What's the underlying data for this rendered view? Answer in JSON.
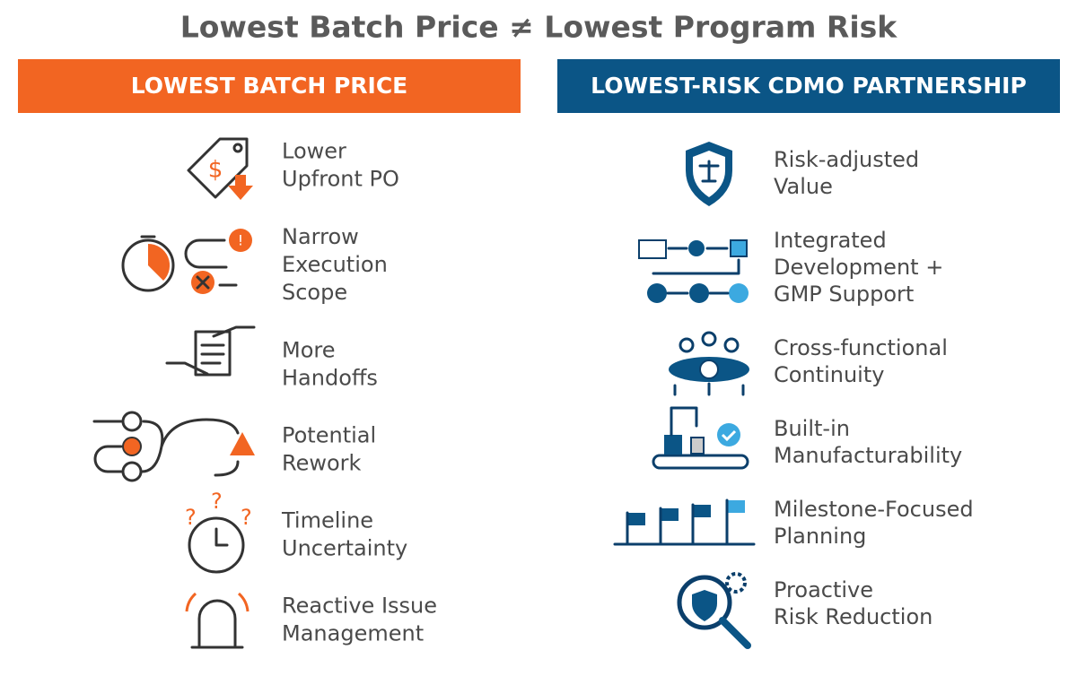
{
  "title": "Lowest Batch Price ≠ Lowest Program Risk",
  "left": {
    "header": "LOWEST BATCH PRICE",
    "items": [
      {
        "lines": [
          "Lower",
          "Upfront PO"
        ]
      },
      {
        "lines": [
          "Narrow",
          "Execution",
          "Scope"
        ]
      },
      {
        "lines": [
          "More",
          "Handoffs"
        ]
      },
      {
        "lines": [
          "Potential",
          "Rework"
        ]
      },
      {
        "lines": [
          "Timeline",
          "Uncertainty"
        ]
      },
      {
        "lines": [
          "Reactive Issue",
          "Management"
        ]
      }
    ]
  },
  "right": {
    "header": "LOWEST-RISK CDMO PARTNERSHIP",
    "items": [
      {
        "lines": [
          "Risk-adjusted",
          "Value"
        ]
      },
      {
        "lines": [
          "Integrated",
          "Development +",
          "GMP Support"
        ]
      },
      {
        "lines": [
          "Cross-functional",
          "Continuity"
        ]
      },
      {
        "lines": [
          "Built-in",
          "Manufacturability"
        ]
      },
      {
        "lines": [
          "Milestone-Focused",
          "Planning"
        ]
      },
      {
        "lines": [
          "Proactive",
          "Risk Reduction"
        ]
      }
    ]
  }
}
